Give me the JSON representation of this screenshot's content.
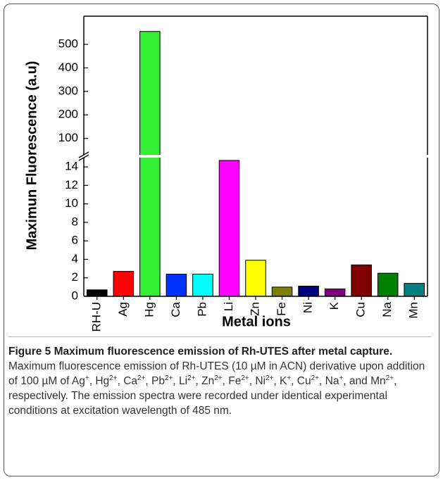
{
  "chart_data": {
    "type": "bar",
    "y_label": "Maximun Fluorescence (a.u)",
    "x_label": "Metal ions",
    "categories": [
      "RH-U",
      "Ag",
      "Hg",
      "Ca",
      "Pb",
      "Li",
      "Zn",
      "Fe",
      "Ni",
      "K",
      "Cu",
      "Na",
      "Mn"
    ],
    "values": [
      0.7,
      2.7,
      555,
      2.4,
      2.4,
      14.7,
      3.9,
      1.0,
      1.1,
      0.8,
      3.4,
      2.5,
      1.4
    ],
    "colors": [
      "#000000",
      "#ff0000",
      "#33ee33",
      "#0033ff",
      "#00ffff",
      "#ff00ff",
      "#ffff00",
      "#808000",
      "#000080",
      "#800080",
      "#800000",
      "#008000",
      "#008080"
    ],
    "ylim": [
      0,
      620
    ],
    "ybreak": [
      15,
      30
    ],
    "yticks": [
      0,
      2,
      4,
      6,
      8,
      10,
      12,
      14,
      100,
      200,
      300,
      400,
      500
    ]
  },
  "caption": {
    "title": "Figure 5 Maximum fluorescence emission of Rh-UTES after metal capture.",
    "runs": [
      {
        "text": "Maximum fluorescence emission of Rh-UTES (10 µM in ACN) derivative upon addition of 100 µM of Ag"
      },
      {
        "sup": "+"
      },
      {
        "text": ", Hg"
      },
      {
        "sup": "2+"
      },
      {
        "text": ", Ca"
      },
      {
        "sup": "2+"
      },
      {
        "text": ", Pb"
      },
      {
        "sup": "2+"
      },
      {
        "text": ", Li"
      },
      {
        "sup": "2+"
      },
      {
        "text": ", Zn"
      },
      {
        "sup": "2+"
      },
      {
        "text": ", Fe"
      },
      {
        "sup": "2+"
      },
      {
        "text": ", Ni"
      },
      {
        "sup": "2+"
      },
      {
        "text": ", K"
      },
      {
        "sup": "+"
      },
      {
        "text": ", Cu"
      },
      {
        "sup": "2+"
      },
      {
        "text": ", Na"
      },
      {
        "sup": "+"
      },
      {
        "text": ", and Mn"
      },
      {
        "sup": "2+"
      },
      {
        "text": ", respectively. The emission spectra were recorded under identical experimental conditions at excitation wavelength of 485 nm."
      }
    ]
  }
}
